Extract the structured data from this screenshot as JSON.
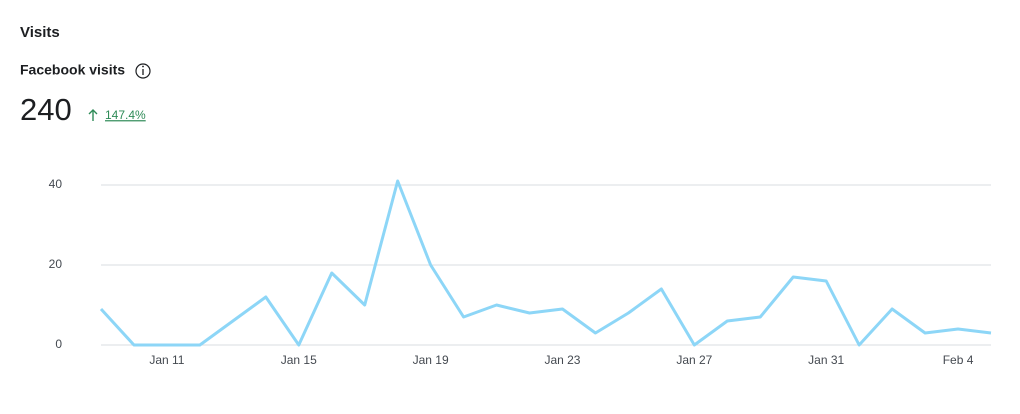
{
  "header": {
    "title": "Visits",
    "metric_label": "Facebook visits",
    "total": "240",
    "change": "147.4%"
  },
  "chart_data": {
    "type": "line",
    "categories": [
      null,
      null,
      "Jan 11",
      null,
      null,
      null,
      "Jan 15",
      null,
      null,
      null,
      "Jan 19",
      null,
      null,
      null,
      "Jan 23",
      null,
      null,
      null,
      "Jan 27",
      null,
      null,
      null,
      "Jan 31",
      null,
      null,
      null,
      "Feb 4",
      null
    ],
    "series": [
      {
        "color": "#8dd6f7",
        "values": [
          9,
          0,
          0,
          0,
          6,
          12,
          0,
          18,
          10,
          41,
          20,
          7,
          10,
          8,
          9,
          3,
          8,
          14,
          0,
          6,
          7,
          17,
          16,
          0,
          9,
          3,
          4,
          3
        ]
      }
    ],
    "ylim": [
      0,
      40
    ],
    "yticks": [
      0,
      20,
      40
    ],
    "grid": true
  }
}
